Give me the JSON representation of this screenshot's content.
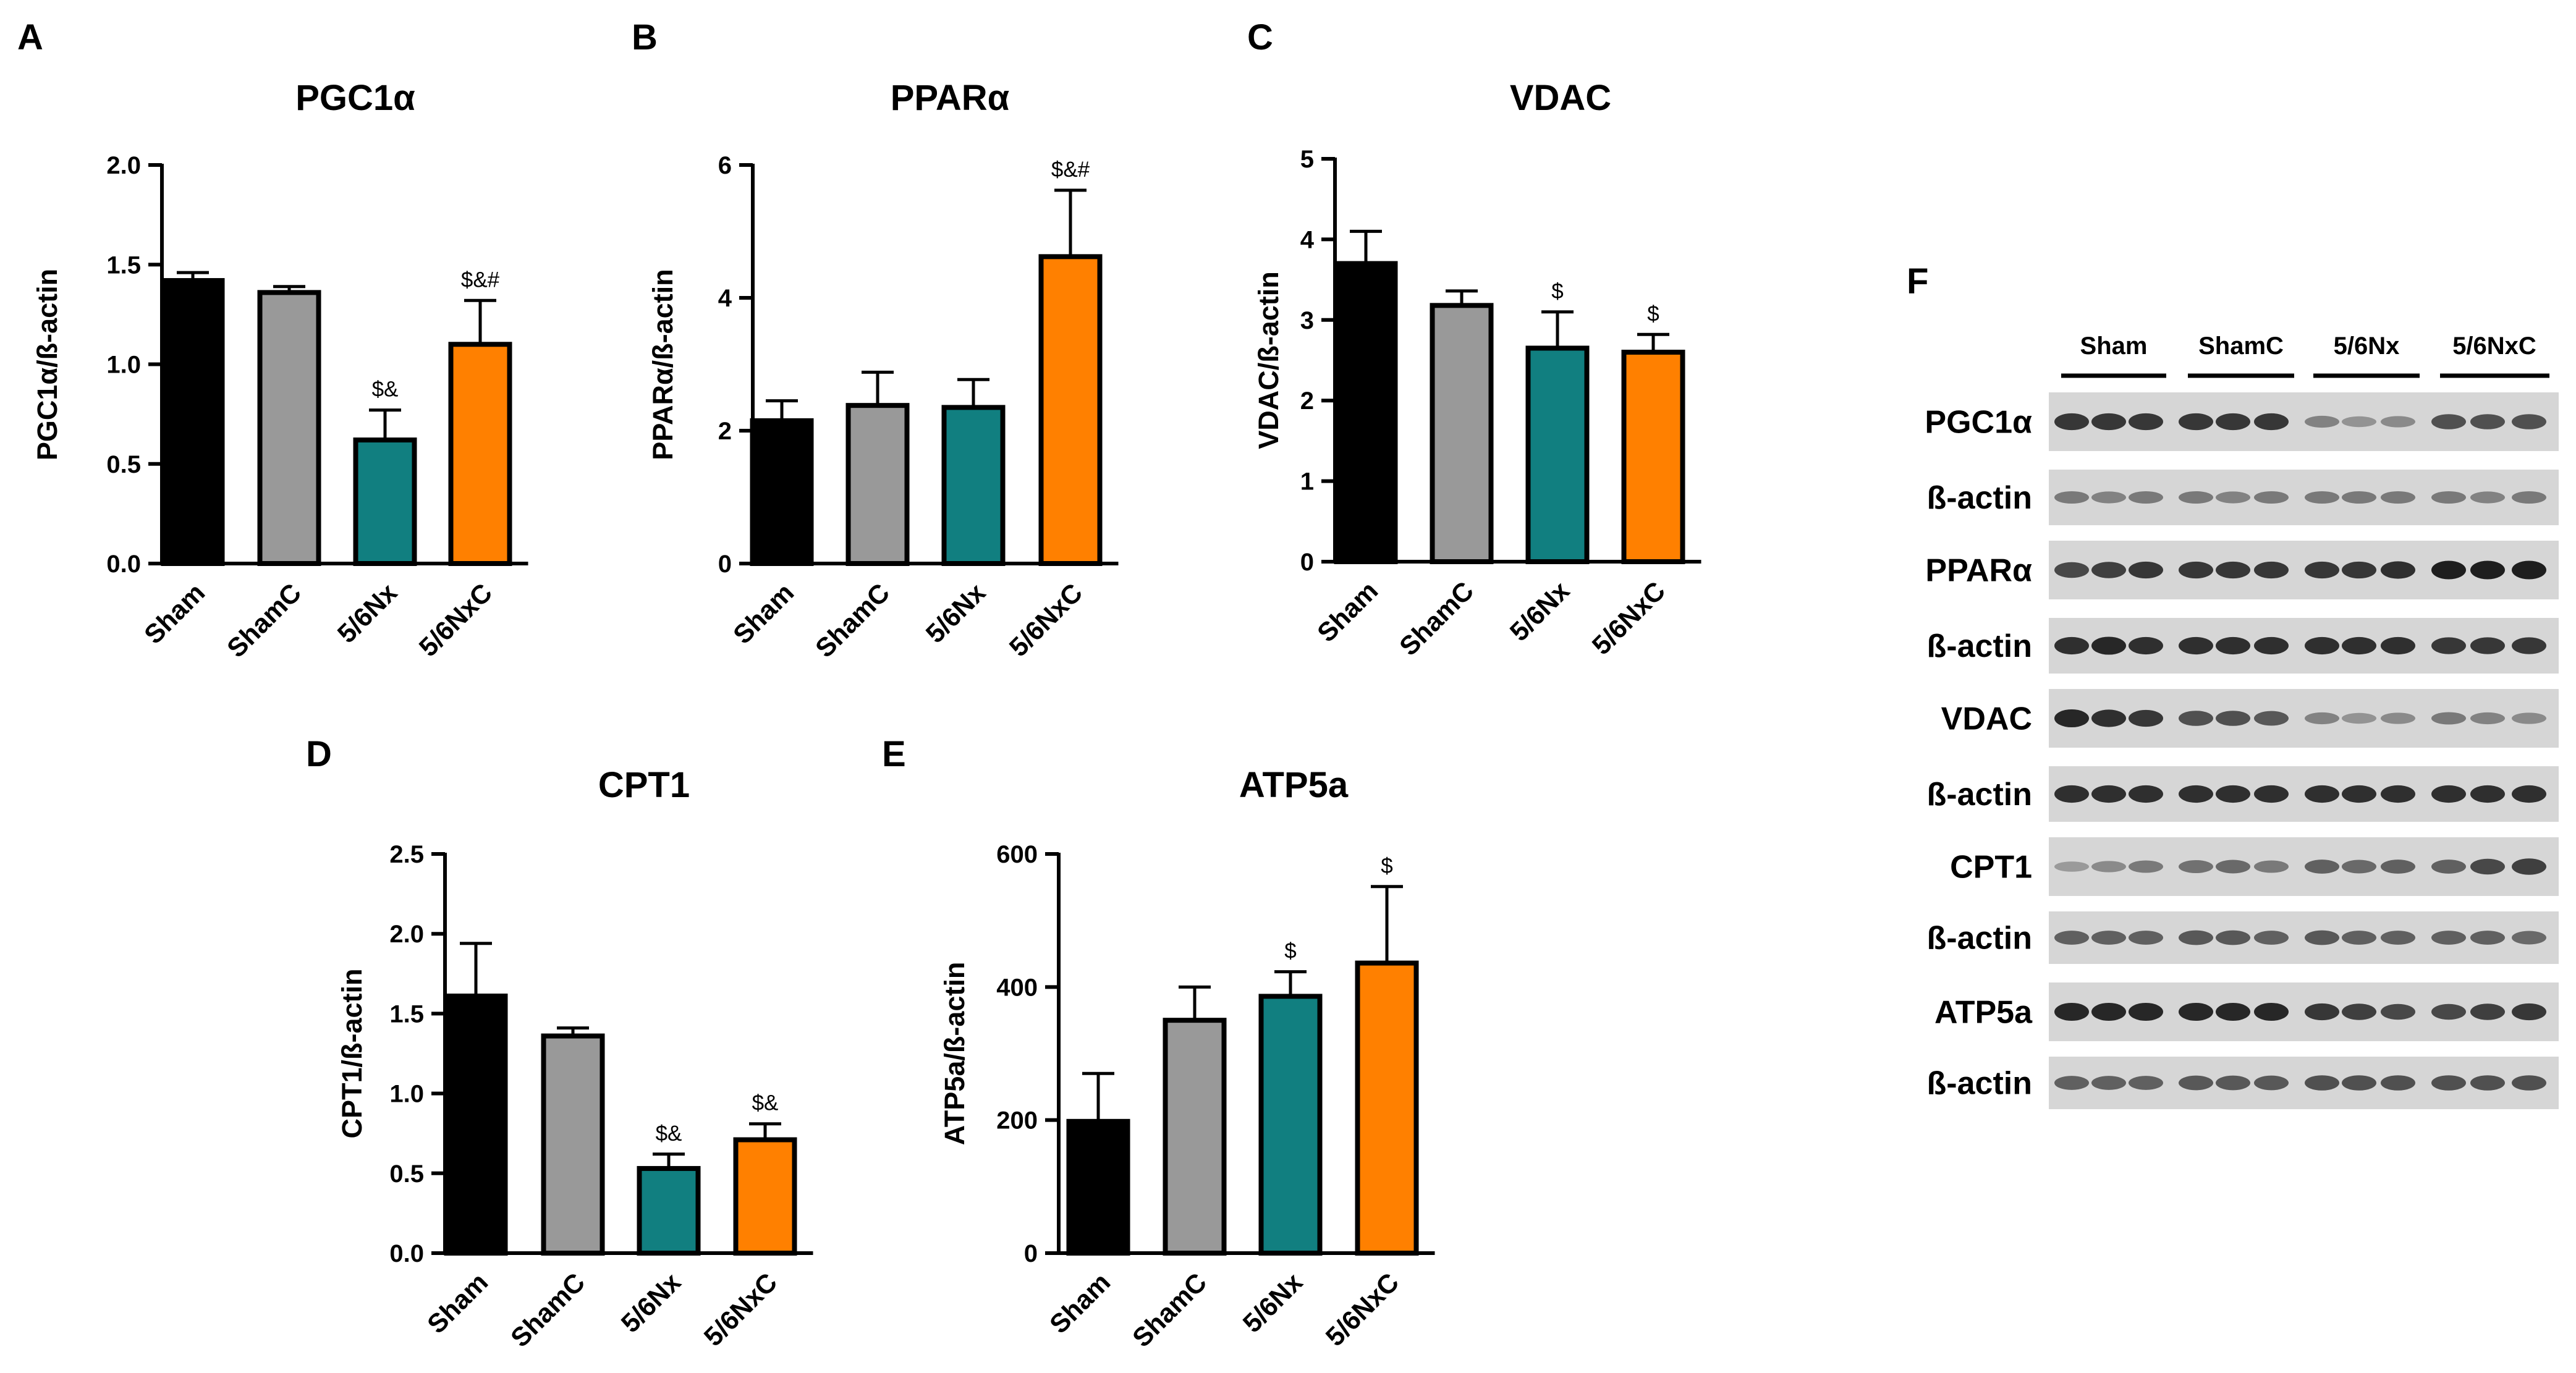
{
  "chart_data": [
    {
      "panel": "A",
      "type": "bar",
      "title": "PGC1α",
      "ylabel": "PGC1α/ß-actin",
      "categories": [
        "Sham",
        "ShamC",
        "5/6Nx",
        "5/6NxC"
      ],
      "values": [
        1.42,
        1.36,
        0.62,
        1.1
      ],
      "errors": [
        0.04,
        0.03,
        0.15,
        0.22
      ],
      "annotations": [
        "",
        "",
        "$&",
        "$&#"
      ],
      "ylim": [
        0,
        2.0
      ],
      "yticks": [
        "0.0",
        "0.5",
        "1.0",
        "1.5",
        "2.0"
      ]
    },
    {
      "panel": "B",
      "type": "bar",
      "title": "PPARα",
      "ylabel": "PPARα/ß-actin",
      "categories": [
        "Sham",
        "ShamC",
        "5/6Nx",
        "5/6NxC"
      ],
      "values": [
        2.15,
        2.38,
        2.35,
        4.62
      ],
      "errors": [
        0.3,
        0.5,
        0.42,
        1.0
      ],
      "annotations": [
        "",
        "",
        "",
        "$&#"
      ],
      "ylim": [
        0,
        6
      ],
      "yticks": [
        "0",
        "2",
        "4",
        "6"
      ]
    },
    {
      "panel": "C",
      "type": "bar",
      "title": "VDAC",
      "ylabel": "VDAC/ß-actin",
      "categories": [
        "Sham",
        "ShamC",
        "5/6Nx",
        "5/6NxC"
      ],
      "values": [
        3.7,
        3.18,
        2.65,
        2.6
      ],
      "errors": [
        0.4,
        0.18,
        0.45,
        0.22
      ],
      "annotations": [
        "",
        "",
        "$",
        "$"
      ],
      "ylim": [
        0,
        5
      ],
      "yticks": [
        "0",
        "1",
        "2",
        "3",
        "4",
        "5"
      ]
    },
    {
      "panel": "D",
      "type": "bar",
      "title": "CPT1",
      "ylabel": "CPT1/ß-actin",
      "categories": [
        "Sham",
        "ShamC",
        "5/6Nx",
        "5/6NxC"
      ],
      "values": [
        1.61,
        1.36,
        0.53,
        0.71
      ],
      "errors": [
        0.33,
        0.05,
        0.09,
        0.1
      ],
      "annotations": [
        "",
        "",
        "$&",
        "$&"
      ],
      "ylim": [
        0,
        2.5
      ],
      "yticks": [
        "0.0",
        "0.5",
        "1.0",
        "1.5",
        "2.0",
        "2.5"
      ]
    },
    {
      "panel": "E",
      "type": "bar",
      "title": "ATP5a",
      "ylabel": "ATP5a/ß-actin",
      "categories": [
        "Sham",
        "ShamC",
        "5/6Nx",
        "5/6NxC"
      ],
      "values": [
        198,
        350,
        386,
        436
      ],
      "errors": [
        72,
        50,
        37,
        115
      ],
      "annotations": [
        "",
        "",
        "$",
        "$"
      ],
      "ylim": [
        0,
        600
      ],
      "yticks": [
        "0",
        "200",
        "400",
        "600"
      ]
    }
  ],
  "bar_colors": [
    "#000000",
    "#999999",
    "#117f80",
    "#ff8000"
  ],
  "western_blot": {
    "panel": "F",
    "groups": [
      "Sham",
      "ShamC",
      "5/6Nx",
      "5/6NxC"
    ],
    "rows": [
      {
        "label": "PGC1α",
        "intensity": [
          0.85,
          0.85,
          0.85,
          0.85,
          0.85,
          0.85,
          0.4,
          0.3,
          0.35,
          0.7,
          0.7,
          0.7
        ]
      },
      {
        "label": "ß-actin",
        "intensity": [
          0.45,
          0.4,
          0.45,
          0.45,
          0.4,
          0.45,
          0.45,
          0.45,
          0.45,
          0.45,
          0.4,
          0.45
        ]
      },
      {
        "label": "PPARα",
        "intensity": [
          0.75,
          0.8,
          0.85,
          0.85,
          0.85,
          0.85,
          0.85,
          0.85,
          0.9,
          1.0,
          1.0,
          1.0
        ]
      },
      {
        "label": "ß-actin",
        "intensity": [
          0.9,
          0.95,
          0.9,
          0.9,
          0.9,
          0.9,
          0.9,
          0.9,
          0.9,
          0.85,
          0.85,
          0.85
        ]
      },
      {
        "label": "VDAC",
        "intensity": [
          0.95,
          0.9,
          0.85,
          0.7,
          0.7,
          0.65,
          0.4,
          0.3,
          0.35,
          0.45,
          0.4,
          0.35
        ]
      },
      {
        "label": "ß-actin",
        "intensity": [
          0.9,
          0.9,
          0.9,
          0.9,
          0.9,
          0.9,
          0.9,
          0.9,
          0.9,
          0.9,
          0.9,
          0.9
        ]
      },
      {
        "label": "CPT1",
        "intensity": [
          0.25,
          0.35,
          0.45,
          0.5,
          0.55,
          0.45,
          0.6,
          0.55,
          0.6,
          0.6,
          0.75,
          0.8
        ]
      },
      {
        "label": "ß-actin",
        "intensity": [
          0.6,
          0.6,
          0.6,
          0.65,
          0.65,
          0.6,
          0.65,
          0.6,
          0.6,
          0.6,
          0.6,
          0.55
        ]
      },
      {
        "label": "ATP5a",
        "intensity": [
          0.95,
          0.95,
          0.95,
          0.95,
          0.95,
          0.95,
          0.85,
          0.8,
          0.75,
          0.75,
          0.8,
          0.85
        ]
      },
      {
        "label": "ß-actin",
        "intensity": [
          0.6,
          0.6,
          0.6,
          0.65,
          0.65,
          0.65,
          0.7,
          0.7,
          0.7,
          0.7,
          0.7,
          0.7
        ]
      }
    ]
  }
}
